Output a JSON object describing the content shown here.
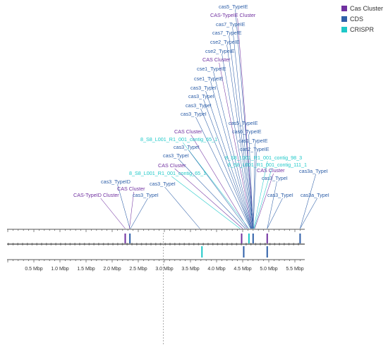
{
  "colors": {
    "cas_cluster": "#7030a0",
    "cds": "#2e5fa8",
    "crispr": "#1ec8c8",
    "axis": "#555555",
    "track": "#888888",
    "cursor": "#999999"
  },
  "legend": [
    {
      "label": "Cas Cluster",
      "color": "#7030a0"
    },
    {
      "label": "CDS",
      "color": "#2e5fa8"
    },
    {
      "label": "CRISPR",
      "color": "#1ec8c8"
    }
  ],
  "axis": {
    "unit": "Mbp",
    "ticks": [
      "0.5 Mbp",
      "1.0 Mbp",
      "1.5 Mbp",
      "2.0 Mbp",
      "2.5 Mbp",
      "3.0 Mbp",
      "3.5 Mbp",
      "4.0 Mbp",
      "4.5 Mbp",
      "5.0 Mbp",
      "5.5 Mbp"
    ],
    "tick_values": [
      0.5,
      1.0,
      1.5,
      2.0,
      2.5,
      3.0,
      3.5,
      4.0,
      4.5,
      5.0,
      5.5
    ]
  },
  "cursor_mbp": 2.98,
  "annotations": [
    {
      "label": "cas5_TypeIE",
      "type": "cds",
      "pos": 4.71
    },
    {
      "label": "CAS-TypeIE Cluster",
      "type": "cas_cluster",
      "pos": 4.71
    },
    {
      "label": "cas7_TypeIE",
      "type": "cds",
      "pos": 4.7
    },
    {
      "label": "cas7_TypeIE",
      "type": "cds",
      "pos": 4.7
    },
    {
      "label": "cse2_TypeIE",
      "type": "cds",
      "pos": 4.69
    },
    {
      "label": "cse2_TypeIE",
      "type": "cds",
      "pos": 4.69
    },
    {
      "label": "CAS Cluster",
      "type": "cas_cluster",
      "pos": 4.68
    },
    {
      "label": "cse1_TypeIE",
      "type": "cds",
      "pos": 4.68
    },
    {
      "label": "cse1_TypeIE",
      "type": "cds",
      "pos": 4.67
    },
    {
      "label": "cas3_TypeI",
      "type": "cds",
      "pos": 4.67
    },
    {
      "label": "cas3_TypeI",
      "type": "cds",
      "pos": 4.66
    },
    {
      "label": "cas3_TypeI",
      "type": "cds",
      "pos": 4.66
    },
    {
      "label": "cas3_TypeI",
      "type": "cds",
      "pos": 4.65
    },
    {
      "label": "cas5_TypeIE",
      "type": "cds",
      "pos": 4.7
    },
    {
      "label": "CAS Cluster",
      "type": "cas_cluster",
      "pos": 4.6
    },
    {
      "label": "cas6_TypeIE",
      "type": "cds",
      "pos": 4.7
    },
    {
      "label": "8_S8_L001_R1_001_contig_65_1",
      "type": "crispr",
      "pos": 4.62
    },
    {
      "label": "cas1_TypeIE",
      "type": "cds",
      "pos": 4.7
    },
    {
      "label": "cas3_TypeI",
      "type": "cds",
      "pos": 4.58
    },
    {
      "label": "cas2_TypeIE",
      "type": "cds",
      "pos": 4.7
    },
    {
      "label": "cas3_TypeI",
      "type": "cds",
      "pos": 4.55
    },
    {
      "label": "8_S8_L001_R1_001_contig_98_3",
      "type": "crispr",
      "pos": 4.71
    },
    {
      "label": "CAS Cluster",
      "type": "cas_cluster",
      "pos": 4.5
    },
    {
      "label": "8_S8_L001_R1_001_contig_111_1",
      "type": "crispr",
      "pos": 4.72
    },
    {
      "label": "8_S8_L001_R1_001_contig_65_1",
      "type": "crispr",
      "pos": 4.45
    },
    {
      "label": "CAS Cluster",
      "type": "cas_cluster",
      "pos": 4.73
    },
    {
      "label": "cas3_TypeI",
      "type": "cds",
      "pos": 4.97
    },
    {
      "label": "cas3a_TypeI",
      "type": "cds",
      "pos": 5.6
    },
    {
      "label": "cas3_TypeI",
      "type": "cds",
      "pos": 3.68
    },
    {
      "label": "cas3_TypeID",
      "type": "cds",
      "pos": 2.34
    },
    {
      "label": "CAS Cluster",
      "type": "cas_cluster",
      "pos": 2.33
    },
    {
      "label": "CAS-TypeID Cluster",
      "type": "cas_cluster",
      "pos": 2.25
    },
    {
      "label": "cas3_TypeI",
      "type": "cds",
      "pos": 2.35
    },
    {
      "label": "cas3_TypeI",
      "type": "cds",
      "pos": 4.97
    },
    {
      "label": "cas3a_TypeI",
      "type": "cds",
      "pos": 5.6
    }
  ]
}
